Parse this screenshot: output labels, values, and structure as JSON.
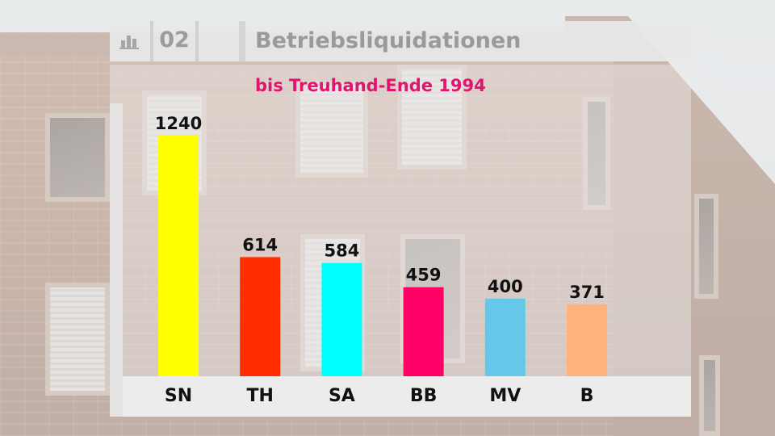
{
  "header": {
    "number": "02",
    "title": "Betriebsliquidationen",
    "icon": "bar-chart-icon"
  },
  "chart_data": {
    "type": "bar",
    "title": "Betriebsliquidationen",
    "subtitle": "bis Treuhand-Ende 1994",
    "categories": [
      "SN",
      "TH",
      "SA",
      "BB",
      "MV",
      "B"
    ],
    "values": [
      1240,
      614,
      584,
      459,
      400,
      371
    ],
    "colors": [
      "#ffff00",
      "#ff2d00",
      "#00ffff",
      "#ff0066",
      "#66c8e8",
      "#ffb27a"
    ],
    "data_labels": [
      "1240",
      "614",
      "584",
      "459",
      "400",
      "371"
    ],
    "ylim": [
      0,
      1400
    ],
    "grid": false,
    "legend": "none",
    "xlabel": "",
    "ylabel": ""
  }
}
